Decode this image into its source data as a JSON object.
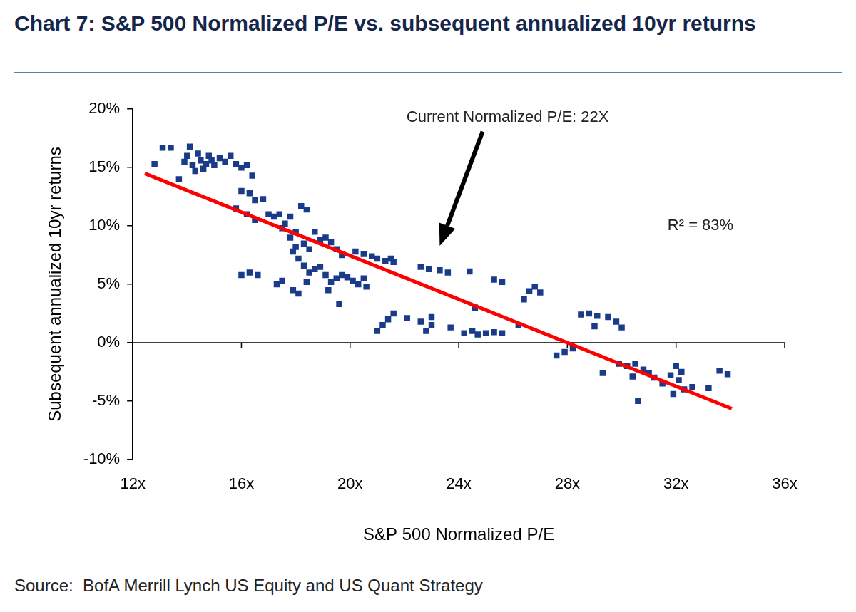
{
  "chart_data": {
    "type": "scatter",
    "title": "Chart 7: S&P 500 Normalized P/E vs. subsequent annualized 10yr returns",
    "x_label": "S&P 500 Normalized P/E",
    "y_label": "Subsequent annualized 10yr returns",
    "source": "Source:  BofA Merrill Lynch US Equity and US Quant Strategy",
    "annotations": [
      {
        "text": "Current Normalized P/E: 22X",
        "x": 25.8,
        "y": 19.3,
        "arrow_x": 23.3,
        "arrow_y": 8.3
      },
      {
        "text": "R² = 83%",
        "x": 32.9,
        "y": 10
      }
    ],
    "xlim": [
      12,
      36
    ],
    "xticks": [
      {
        "value": 12,
        "label": "12x"
      },
      {
        "value": 16,
        "label": "16x"
      },
      {
        "value": 20,
        "label": "20x"
      },
      {
        "value": 24,
        "label": "24x"
      },
      {
        "value": 28,
        "label": "28x"
      },
      {
        "value": 32,
        "label": "32x"
      },
      {
        "value": 36,
        "label": "36x"
      }
    ],
    "ylim": [
      -10,
      20
    ],
    "yticks": [
      {
        "value": -10,
        "label": "-10%"
      },
      {
        "value": -5,
        "label": "-5%"
      },
      {
        "value": 0,
        "label": "0%"
      },
      {
        "value": 5,
        "label": "5%"
      },
      {
        "value": 10,
        "label": "10%"
      },
      {
        "value": 15,
        "label": "15%"
      },
      {
        "value": 20,
        "label": "20%"
      }
    ],
    "grid": false,
    "series": [
      {
        "type": "scatter",
        "color": "#1a3a8a",
        "marker": "square",
        "x": [
          12.8,
          13.1,
          13.4,
          13.7,
          13.9,
          14.0,
          14.1,
          14.2,
          14.3,
          14.4,
          14.5,
          14.6,
          14.7,
          14.8,
          14.9,
          15.0,
          15.2,
          15.4,
          15.6,
          15.8,
          16.0,
          16.2,
          16.4,
          16.0,
          16.3,
          16.5,
          15.8,
          16.2,
          16.5,
          16.8,
          17.0,
          17.2,
          17.4,
          17.6,
          17.8,
          17.5,
          17.8,
          18.0,
          18.2,
          18.4,
          18.0,
          18.3,
          18.5,
          18.7,
          18.9,
          19.1,
          19.3,
          19.5,
          19.7,
          17.9,
          18.1,
          18.3,
          18.5,
          18.7,
          18.9,
          19.1,
          19.3,
          19.5,
          19.7,
          19.9,
          20.1,
          20.3,
          20.5,
          20.2,
          20.5,
          20.8,
          21.0,
          21.3,
          21.6,
          21.5,
          16.0,
          16.3,
          16.6,
          17.3,
          17.5,
          17.9,
          18.1,
          18.4,
          19.2,
          19.6,
          20.6,
          21.0,
          21.2,
          21.4,
          21.6,
          22.1,
          22.6,
          22.8,
          23.0,
          23.0,
          22.6,
          22.9,
          23.3,
          23.6,
          23.7,
          24.2,
          24.5,
          24.7,
          25.0,
          25.3,
          25.6,
          24.4,
          24.6,
          25.3,
          25.6,
          26.2,
          26.4,
          26.6,
          26.8,
          27.0,
          27.6,
          27.9,
          28.2,
          28.5,
          28.8,
          29.1,
          29.0,
          29.3,
          29.5,
          29.8,
          30.0,
          29.9,
          30.2,
          30.5,
          30.8,
          30.6,
          31.0,
          31.2,
          31.5,
          31.8,
          32.0,
          32.2,
          31.9,
          32.3,
          32.6,
          33.2,
          33.6,
          33.9,
          32.1,
          30.4
        ],
        "values": [
          15.3,
          16.7,
          16.7,
          14.0,
          15.5,
          16.0,
          16.8,
          15.2,
          14.7,
          16.2,
          15.6,
          14.9,
          15.3,
          16.0,
          15.6,
          15.2,
          15.8,
          15.5,
          16.0,
          15.3,
          15.0,
          15.2,
          14.3,
          13.0,
          12.8,
          12.2,
          11.5,
          11.0,
          10.5,
          12.3,
          11.0,
          10.8,
          11.0,
          10.2,
          10.8,
          9.8,
          9.0,
          9.5,
          11.7,
          11.4,
          8.2,
          8.5,
          8.0,
          9.5,
          8.8,
          9.0,
          8.6,
          8.0,
          7.5,
          7.8,
          7.2,
          6.6,
          6.0,
          6.3,
          6.5,
          5.8,
          5.2,
          5.5,
          5.8,
          5.6,
          5.3,
          5.0,
          5.5,
          7.8,
          7.6,
          7.4,
          7.2,
          7.0,
          6.9,
          7.2,
          5.8,
          6.0,
          5.8,
          5.0,
          5.3,
          4.5,
          4.2,
          5.2,
          4.5,
          3.3,
          4.8,
          1.0,
          1.5,
          2.0,
          2.5,
          2.1,
          1.8,
          1.0,
          1.5,
          2.2,
          6.5,
          6.3,
          6.2,
          6.0,
          1.3,
          0.8,
          1.0,
          0.7,
          0.8,
          0.9,
          0.8,
          6.1,
          3.0,
          5.4,
          5.2,
          1.5,
          3.7,
          4.4,
          4.8,
          4.3,
          -1.1,
          -0.8,
          -0.5,
          2.4,
          2.5,
          2.3,
          1.4,
          -2.6,
          2.2,
          1.8,
          1.3,
          -1.8,
          -2.0,
          -1.8,
          -2.3,
          -5.0,
          -2.6,
          -3.0,
          -3.5,
          -2.8,
          -2.0,
          -2.5,
          -4.4,
          -4.0,
          -3.8,
          -3.9,
          -2.4,
          -2.7,
          -3.2,
          -2.9
        ]
      },
      {
        "type": "line",
        "color": "#ff0000",
        "line_style": "solid",
        "x": [
          12.44,
          34.05
        ],
        "values": [
          14.5,
          -5.65
        ]
      }
    ]
  }
}
